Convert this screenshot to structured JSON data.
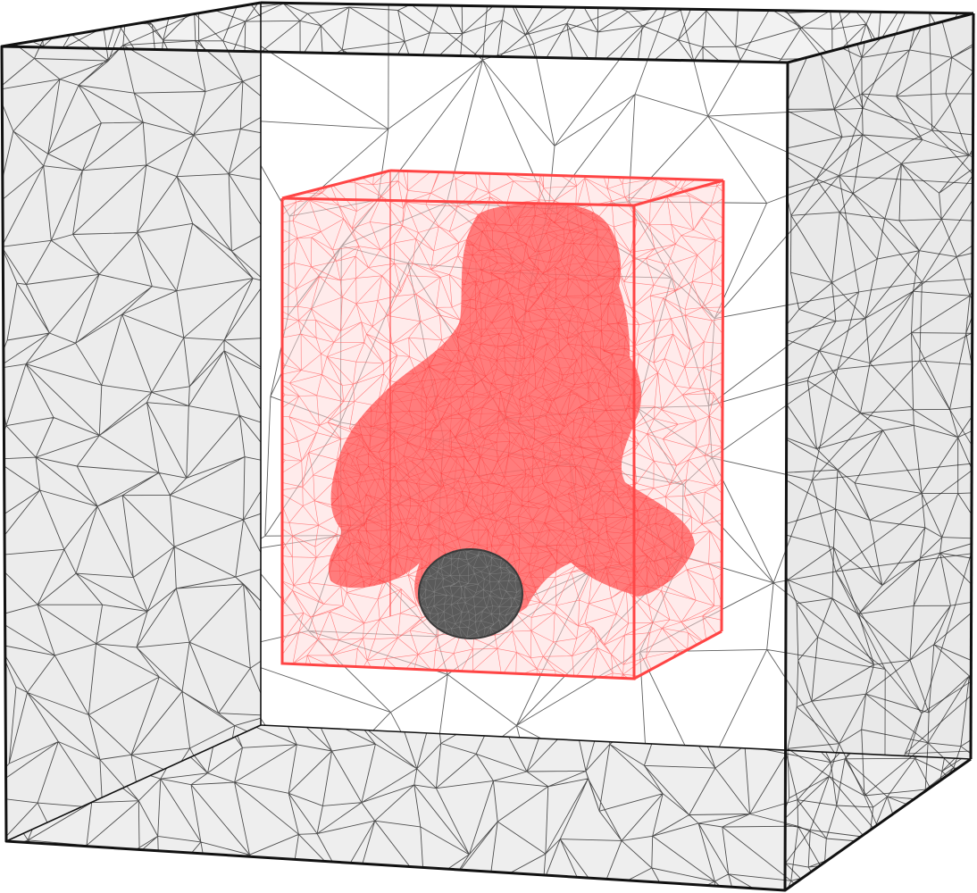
{
  "scene": {
    "type": "tetrahedral-mesh-render",
    "outer_box": {
      "edge_color": "#000000",
      "face_fill": "#e6e6e6",
      "wire_color": "#1a1a1a"
    },
    "inner_box": {
      "edge_color": "#ff4040",
      "wire_color": "#ff5a5a",
      "fill": "#ffd6d6"
    },
    "model": {
      "fill": "#ff6a6a",
      "dark_patch_color": "#555555"
    },
    "background": "#ffffff"
  }
}
